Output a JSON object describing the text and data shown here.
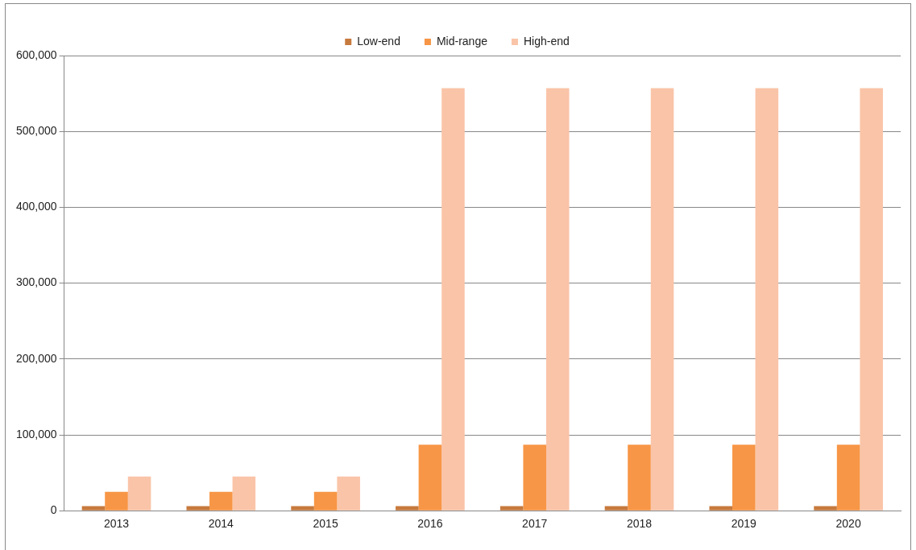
{
  "chart_data": {
    "type": "bar",
    "categories": [
      "2013",
      "2014",
      "2015",
      "2016",
      "2017",
      "2018",
      "2019",
      "2020"
    ],
    "series": [
      {
        "name": "Low-end",
        "color": "#c77a3e",
        "values": [
          6000,
          6000,
          6000,
          6000,
          6000,
          6000,
          6000,
          6000
        ]
      },
      {
        "name": "Mid-range",
        "color": "#f79646",
        "values": [
          25000,
          25000,
          25000,
          87000,
          87000,
          87000,
          87000,
          87000
        ]
      },
      {
        "name": "High-end",
        "color": "#fac4a8",
        "values": [
          45000,
          45000,
          45000,
          557000,
          557000,
          557000,
          557000,
          557000
        ]
      }
    ],
    "ylim": [
      0,
      600000
    ],
    "yticks": [
      {
        "value": 0,
        "label": "0"
      },
      {
        "value": 100000,
        "label": "100,000"
      },
      {
        "value": 200000,
        "label": "200,000"
      },
      {
        "value": 300000,
        "label": "300,000"
      },
      {
        "value": 400000,
        "label": "400,000"
      },
      {
        "value": 500000,
        "label": "500,000"
      },
      {
        "value": 600000,
        "label": "600,000"
      }
    ],
    "grid": "y",
    "legend": "top"
  }
}
